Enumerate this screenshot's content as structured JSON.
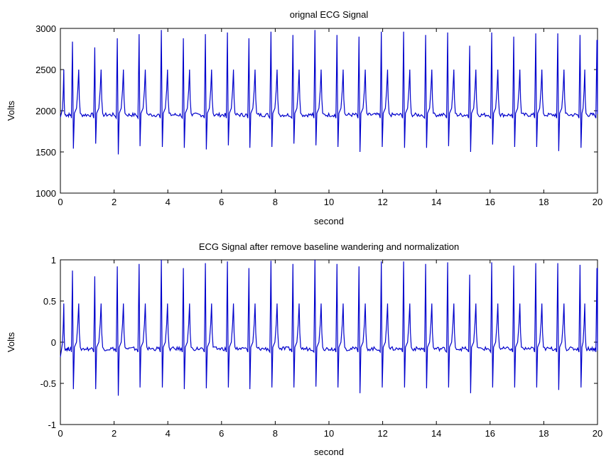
{
  "chart_data": [
    {
      "type": "line",
      "title": "orignal ECG Signal",
      "xlabel": "second",
      "ylabel": "Volts",
      "xlim": [
        0,
        20
      ],
      "ylim": [
        1000,
        3000
      ],
      "xticks": [
        0,
        2,
        4,
        6,
        8,
        10,
        12,
        14,
        16,
        18,
        20
      ],
      "yticks": [
        1000,
        1500,
        2000,
        2500,
        3000
      ],
      "grid": false,
      "line_color": "#0000cc",
      "baseline": 1950,
      "beats": [
        {
          "t": 0.0,
          "r": 1920,
          "s": 1900
        },
        {
          "t": 0.45,
          "r": 2840,
          "s": 1540
        },
        {
          "t": 1.28,
          "r": 2770,
          "s": 1600
        },
        {
          "t": 2.12,
          "r": 2880,
          "s": 1470
        },
        {
          "t": 2.93,
          "r": 2930,
          "s": 1570
        },
        {
          "t": 3.76,
          "r": 2980,
          "s": 1560
        },
        {
          "t": 4.58,
          "r": 2880,
          "s": 1550
        },
        {
          "t": 5.4,
          "r": 2930,
          "s": 1530
        },
        {
          "t": 6.22,
          "r": 2950,
          "s": 1580
        },
        {
          "t": 7.02,
          "r": 2880,
          "s": 1550
        },
        {
          "t": 7.84,
          "r": 2960,
          "s": 1560
        },
        {
          "t": 8.66,
          "r": 2920,
          "s": 1600
        },
        {
          "t": 9.48,
          "r": 2980,
          "s": 1580
        },
        {
          "t": 10.3,
          "r": 2920,
          "s": 1560
        },
        {
          "t": 11.12,
          "r": 2900,
          "s": 1500
        },
        {
          "t": 11.95,
          "r": 2960,
          "s": 1560
        },
        {
          "t": 12.78,
          "r": 2960,
          "s": 1550
        },
        {
          "t": 13.6,
          "r": 2920,
          "s": 1550
        },
        {
          "t": 14.42,
          "r": 2950,
          "s": 1570
        },
        {
          "t": 15.24,
          "r": 2790,
          "s": 1500
        },
        {
          "t": 16.06,
          "r": 2950,
          "s": 1590
        },
        {
          "t": 16.88,
          "r": 2900,
          "s": 1560
        },
        {
          "t": 17.7,
          "r": 2940,
          "s": 1560
        },
        {
          "t": 18.52,
          "r": 2940,
          "s": 1510
        },
        {
          "t": 19.35,
          "r": 2920,
          "s": 1550
        },
        {
          "t": 19.98,
          "r": 2860,
          "s": 1960
        }
      ],
      "t_wave_height": 550
    },
    {
      "type": "line",
      "title": "ECG Signal after remove baseline wandering and normalization",
      "xlabel": "second",
      "ylabel": "Volts",
      "xlim": [
        0,
        20
      ],
      "ylim": [
        -1,
        1
      ],
      "xticks": [
        0,
        2,
        4,
        6,
        8,
        10,
        12,
        14,
        16,
        18,
        20
      ],
      "yticks": [
        -1,
        -0.5,
        0,
        0.5,
        1
      ],
      "grid": false,
      "line_color": "#0000cc",
      "baseline": -0.08,
      "beats": [
        {
          "t": 0.0,
          "r": -0.18,
          "s": -0.2
        },
        {
          "t": 0.45,
          "r": 0.87,
          "s": -0.57
        },
        {
          "t": 1.28,
          "r": 0.8,
          "s": -0.57
        },
        {
          "t": 2.12,
          "r": 0.92,
          "s": -0.65
        },
        {
          "t": 2.93,
          "r": 0.95,
          "s": -0.55
        },
        {
          "t": 3.76,
          "r": 1.0,
          "s": -0.55
        },
        {
          "t": 4.58,
          "r": 0.9,
          "s": -0.57
        },
        {
          "t": 5.4,
          "r": 0.96,
          "s": -0.56
        },
        {
          "t": 6.22,
          "r": 0.98,
          "s": -0.55
        },
        {
          "t": 7.02,
          "r": 0.9,
          "s": -0.57
        },
        {
          "t": 7.84,
          "r": 0.99,
          "s": -0.55
        },
        {
          "t": 8.66,
          "r": 0.95,
          "s": -0.55
        },
        {
          "t": 9.48,
          "r": 1.0,
          "s": -0.54
        },
        {
          "t": 10.3,
          "r": 0.95,
          "s": -0.55
        },
        {
          "t": 11.12,
          "r": 0.92,
          "s": -0.62
        },
        {
          "t": 11.95,
          "r": 0.98,
          "s": -0.55
        },
        {
          "t": 12.78,
          "r": 0.98,
          "s": -0.55
        },
        {
          "t": 13.6,
          "r": 0.95,
          "s": -0.56
        },
        {
          "t": 14.42,
          "r": 0.97,
          "s": -0.55
        },
        {
          "t": 15.24,
          "r": 0.82,
          "s": -0.62
        },
        {
          "t": 16.06,
          "r": 0.97,
          "s": -0.55
        },
        {
          "t": 16.88,
          "r": 0.93,
          "s": -0.55
        },
        {
          "t": 17.7,
          "r": 0.96,
          "s": -0.55
        },
        {
          "t": 18.52,
          "r": 0.96,
          "s": -0.58
        },
        {
          "t": 19.35,
          "r": 0.94,
          "s": -0.55
        },
        {
          "t": 19.98,
          "r": 0.9,
          "s": -0.1
        }
      ],
      "t_wave_height": 0.55
    }
  ]
}
